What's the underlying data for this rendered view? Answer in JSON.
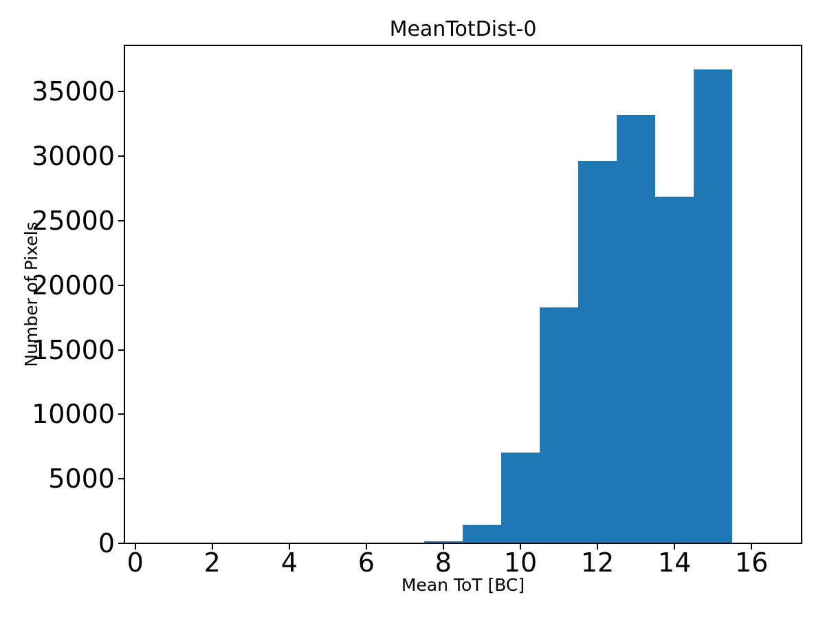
{
  "figure": {
    "background": "#ffffff",
    "text_color": "#000000",
    "spine_color": "#000000"
  },
  "chart_data": {
    "type": "bar",
    "title": "MeanTotDist-0",
    "xlabel": "Mean ToT [BC]",
    "ylabel": "Number of Pixels",
    "bar_color": "#1f77b4",
    "bin_width": 1,
    "bin_left_edges": [
      7.5,
      8.5,
      9.5,
      10.5,
      11.5,
      12.5,
      13.5,
      14.5
    ],
    "values": [
      150,
      1450,
      7050,
      18270,
      29650,
      33200,
      26880,
      36750
    ],
    "xlim": [
      -0.28,
      17.3
    ],
    "ylim": [
      0,
      38590
    ],
    "x_ticks": [
      0,
      2,
      4,
      6,
      8,
      10,
      12,
      14,
      16
    ],
    "y_ticks": [
      0,
      5000,
      10000,
      15000,
      20000,
      25000,
      30000,
      35000
    ],
    "grid": false,
    "legend": null
  }
}
